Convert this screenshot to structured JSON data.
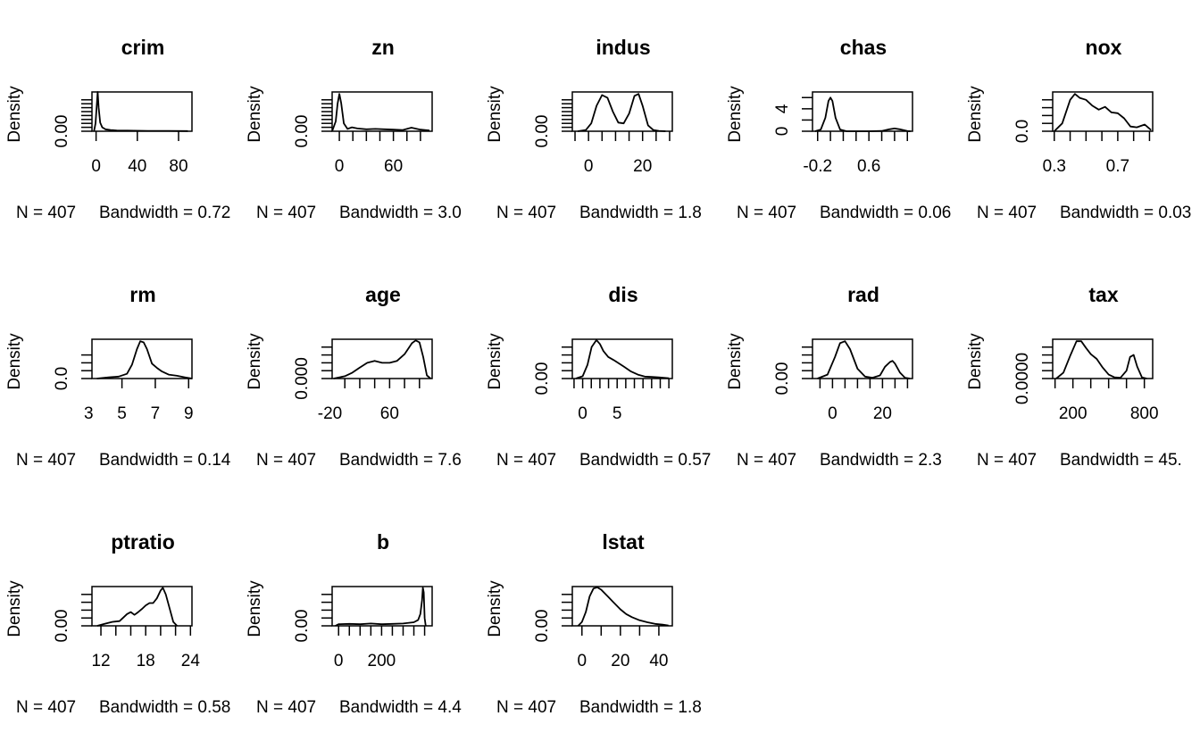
{
  "chart_data": [
    {
      "type": "line",
      "title": "crim",
      "ylabel": "Density",
      "xlim": [
        -4,
        93
      ],
      "ylim": [
        0,
        1
      ],
      "xticks": [
        0,
        40,
        80
      ],
      "xtick_labels": [
        "0",
        "40",
        "80"
      ],
      "yticks": [
        0,
        0.1,
        0.2,
        0.3,
        0.4,
        0.5,
        0.6,
        0.7,
        0.8
      ],
      "ytick_labels": [
        "0.00"
      ],
      "n_label": "N = 407",
      "bw_label": "Bandwidth = 0.72",
      "x": [
        -2,
        -0.5,
        0.5,
        1.5,
        2.5,
        4,
        6,
        9,
        14,
        20,
        30,
        50,
        70,
        89
      ],
      "y": [
        0,
        0.2,
        0.6,
        1,
        0.6,
        0.22,
        0.1,
        0.05,
        0.03,
        0.02,
        0.015,
        0.01,
        0.01,
        0.005
      ]
    },
    {
      "type": "line",
      "title": "zn",
      "ylabel": "Density",
      "xlim": [
        -8,
        103
      ],
      "ylim": [
        0,
        1
      ],
      "xticks": [
        0,
        60
      ],
      "xtick_labels": [
        "0",
        "60"
      ],
      "yticks": [
        0,
        0.1,
        0.2,
        0.3,
        0.4,
        0.5,
        0.6,
        0.7,
        0.8
      ],
      "ytick_labels": [
        "0.00"
      ],
      "n_label": "N = 407",
      "bw_label": "Bandwidth = 3.0",
      "x": [
        -9,
        -4,
        -2,
        0,
        2,
        5,
        9,
        14,
        20,
        30,
        40,
        50,
        60,
        70,
        75,
        80,
        90,
        100
      ],
      "y": [
        0,
        0.25,
        0.7,
        0.95,
        0.72,
        0.2,
        0.06,
        0.1,
        0.07,
        0.05,
        0.06,
        0.05,
        0.04,
        0.03,
        0.06,
        0.09,
        0.04,
        0.02
      ]
    },
    {
      "type": "line",
      "title": "indus",
      "ylabel": "Density",
      "xlim": [
        -6,
        31
      ],
      "ylim": [
        0,
        1
      ],
      "xticks": [
        0,
        20
      ],
      "xtick_labels": [
        "0",
        "20"
      ],
      "yticks": [
        0,
        0.1,
        0.2,
        0.3,
        0.4,
        0.5,
        0.6,
        0.7,
        0.8
      ],
      "ytick_labels": [
        "0.00"
      ],
      "n_label": "N = 407",
      "bw_label": "Bandwidth = 1.8",
      "x": [
        -4,
        -1,
        1,
        3,
        5,
        7,
        9,
        11,
        13,
        15,
        17,
        18.5,
        20,
        22,
        24,
        26,
        28.5
      ],
      "y": [
        0,
        0.03,
        0.2,
        0.65,
        0.92,
        0.85,
        0.5,
        0.22,
        0.2,
        0.45,
        0.9,
        0.95,
        0.65,
        0.15,
        0.03,
        0.01,
        0
      ]
    },
    {
      "type": "line",
      "title": "chas",
      "ylabel": "Density",
      "xlim": [
        -0.28,
        1.28
      ],
      "ylim": [
        0,
        7
      ],
      "xticks": [
        -0.2,
        0.6
      ],
      "xtick_labels": [
        "-0.2",
        "0.6"
      ],
      "yticks": [
        0,
        2,
        4,
        6
      ],
      "ytick_labels": [
        "0",
        "4"
      ],
      "n_label": "N = 407",
      "bw_label": "Bandwidth = 0.06",
      "x": [
        -0.24,
        -0.15,
        -0.08,
        -0.03,
        0,
        0.03,
        0.08,
        0.15,
        0.25,
        0.4,
        0.6,
        0.8,
        0.92,
        1.0,
        1.08,
        1.2,
        1.25
      ],
      "y": [
        0,
        0.3,
        2.4,
        5.4,
        6,
        5.4,
        2.4,
        0.3,
        0,
        0,
        0,
        0.05,
        0.35,
        0.5,
        0.35,
        0.03,
        0
      ]
    },
    {
      "type": "line",
      "title": "nox",
      "ylabel": "Density",
      "xlim": [
        0.29,
        0.92
      ],
      "ylim": [
        0,
        1
      ],
      "xticks": [
        0.3,
        0.7
      ],
      "xtick_labels": [
        "0.3",
        "0.7"
      ],
      "yticks": [
        0,
        0.2,
        0.4,
        0.6,
        0.8
      ],
      "ytick_labels": [
        "0.0"
      ],
      "n_label": "N = 407",
      "bw_label": "Bandwidth = 0.03",
      "x": [
        0.3,
        0.35,
        0.4,
        0.43,
        0.46,
        0.5,
        0.54,
        0.58,
        0.62,
        0.66,
        0.7,
        0.74,
        0.78,
        0.82,
        0.87,
        0.91
      ],
      "y": [
        0,
        0.2,
        0.8,
        0.95,
        0.85,
        0.8,
        0.65,
        0.55,
        0.62,
        0.48,
        0.46,
        0.33,
        0.12,
        0.1,
        0.17,
        0.03
      ]
    },
    {
      "type": "line",
      "title": "rm",
      "ylabel": "Density",
      "xlim": [
        3.2,
        9.2
      ],
      "ylim": [
        0,
        1
      ],
      "xticks": [
        3,
        5,
        7,
        9
      ],
      "xtick_labels": [
        "3",
        "5",
        "7",
        "9"
      ],
      "yticks": [
        0,
        0.2,
        0.4,
        0.6
      ],
      "ytick_labels": [
        "0.0"
      ],
      "n_label": "N = 407",
      "bw_label": "Bandwidth = 0.14",
      "x": [
        3.5,
        4.2,
        4.8,
        5.3,
        5.6,
        5.9,
        6.1,
        6.3,
        6.5,
        6.8,
        7.1,
        7.4,
        7.8,
        8.3,
        8.8,
        9.2
      ],
      "y": [
        0,
        0.03,
        0.05,
        0.12,
        0.35,
        0.75,
        0.95,
        0.92,
        0.75,
        0.38,
        0.27,
        0.18,
        0.1,
        0.07,
        0.03,
        0
      ]
    },
    {
      "type": "line",
      "title": "age",
      "ylabel": "Density",
      "xlim": [
        -17,
        117
      ],
      "ylim": [
        0,
        1
      ],
      "xticks": [
        -20,
        60
      ],
      "xtick_labels": [
        "-20",
        "60"
      ],
      "yticks": [
        0,
        0.2,
        0.4,
        0.6,
        0.8
      ],
      "ytick_labels": [
        "0.000"
      ],
      "n_label": "N = 407",
      "bw_label": "Bandwidth = 7.6",
      "x": [
        -15,
        0,
        10,
        20,
        30,
        40,
        50,
        60,
        70,
        80,
        90,
        95,
        100,
        105,
        110,
        115
      ],
      "y": [
        0,
        0.06,
        0.15,
        0.28,
        0.4,
        0.45,
        0.4,
        0.4,
        0.45,
        0.62,
        0.9,
        0.97,
        0.92,
        0.55,
        0.08,
        0
      ]
    },
    {
      "type": "line",
      "title": "dis",
      "ylabel": "Density",
      "xlim": [
        -1.5,
        13
      ],
      "ylim": [
        0,
        1
      ],
      "xticks": [
        0,
        5
      ],
      "xtick_labels": [
        "0",
        "5"
      ],
      "yticks": [
        0,
        0.2,
        0.4,
        0.6,
        0.8
      ],
      "ytick_labels": [
        "0.00"
      ],
      "n_label": "N = 407",
      "bw_label": "Bandwidth = 0.57",
      "x": [
        -1,
        0,
        0.7,
        1.3,
        2,
        2.5,
        3,
        3.7,
        4.5,
        5.3,
        6,
        7,
        8,
        9,
        10,
        11,
        12.5
      ],
      "y": [
        0,
        0.06,
        0.35,
        0.8,
        0.98,
        0.88,
        0.7,
        0.55,
        0.47,
        0.38,
        0.3,
        0.18,
        0.1,
        0.05,
        0.04,
        0.03,
        0.01
      ]
    },
    {
      "type": "line",
      "title": "rad",
      "ylabel": "Density",
      "xlim": [
        -8,
        32
      ],
      "ylim": [
        0,
        1
      ],
      "xticks": [
        0,
        20
      ],
      "xtick_labels": [
        "0",
        "20"
      ],
      "yticks": [
        0,
        0.2,
        0.4,
        0.6,
        0.8
      ],
      "ytick_labels": [
        "0.00"
      ],
      "n_label": "N = 407",
      "bw_label": "Bandwidth = 2.3",
      "x": [
        -6,
        -2,
        1,
        3,
        5,
        7,
        10,
        13,
        16,
        19,
        21,
        23,
        24,
        25,
        27,
        29,
        31
      ],
      "y": [
        0,
        0.1,
        0.55,
        0.9,
        0.95,
        0.75,
        0.25,
        0.05,
        0.02,
        0.08,
        0.3,
        0.42,
        0.45,
        0.38,
        0.15,
        0.02,
        0
      ]
    },
    {
      "type": "line",
      "title": "tax",
      "ylabel": "Density",
      "xlim": [
        30,
        870
      ],
      "ylim": [
        0,
        1
      ],
      "xticks": [
        200,
        800
      ],
      "xtick_labels": [
        "200",
        "800"
      ],
      "yticks": [
        0,
        0.2,
        0.4,
        0.6,
        0.8
      ],
      "ytick_labels": [
        "0.0000"
      ],
      "n_label": "N = 407",
      "bw_label": "Bandwidth = 45.",
      "x": [
        60,
        120,
        180,
        230,
        270,
        310,
        350,
        400,
        450,
        500,
        550,
        600,
        650,
        680,
        710,
        740,
        780,
        820
      ],
      "y": [
        0,
        0.15,
        0.6,
        0.95,
        0.95,
        0.78,
        0.62,
        0.5,
        0.28,
        0.1,
        0.03,
        0.02,
        0.2,
        0.55,
        0.6,
        0.3,
        0.03,
        0
      ]
    },
    {
      "type": "line",
      "title": "ptratio",
      "ylabel": "Density",
      "xlim": [
        10.8,
        24.2
      ],
      "ylim": [
        0,
        1
      ],
      "xticks": [
        12,
        14,
        16,
        18,
        20,
        22,
        24
      ],
      "xtick_labels": [
        "12",
        "18",
        "24"
      ],
      "yticks": [
        0,
        0.2,
        0.4,
        0.6,
        0.8
      ],
      "ytick_labels": [
        "0.00"
      ],
      "n_label": "N = 407",
      "bw_label": "Bandwidth = 0.58",
      "x": [
        11.5,
        12.5,
        13.5,
        14.5,
        15.5,
        16,
        16.5,
        17,
        17.5,
        18,
        18.5,
        19,
        19.5,
        20,
        20.3,
        20.7,
        21.2,
        21.7,
        22.2
      ],
      "y": [
        0,
        0.05,
        0.1,
        0.12,
        0.3,
        0.35,
        0.28,
        0.35,
        0.43,
        0.52,
        0.58,
        0.58,
        0.7,
        0.9,
        0.97,
        0.8,
        0.45,
        0.1,
        0
      ]
    },
    {
      "type": "line",
      "title": "b",
      "ylabel": "Density",
      "xlim": [
        -30,
        435
      ],
      "ylim": [
        0,
        1
      ],
      "xticks": [
        0,
        200
      ],
      "xtick_labels": [
        "0",
        "200"
      ],
      "yticks": [
        0,
        0.2,
        0.4,
        0.6,
        0.8
      ],
      "ytick_labels": [
        "0.00"
      ],
      "n_label": "N = 407",
      "bw_label": "Bandwidth = 4.4",
      "x": [
        -15,
        0,
        50,
        100,
        150,
        200,
        250,
        300,
        350,
        370,
        380,
        388,
        392,
        396,
        400,
        405
      ],
      "y": [
        0,
        0.04,
        0.05,
        0.04,
        0.06,
        0.04,
        0.05,
        0.06,
        0.09,
        0.15,
        0.3,
        0.65,
        0.97,
        0.85,
        0.2,
        0
      ]
    },
    {
      "type": "line",
      "title": "lstat",
      "ylabel": "Density",
      "xlim": [
        -5,
        47
      ],
      "ylim": [
        0,
        1
      ],
      "xticks": [
        0,
        10,
        20,
        30,
        40
      ],
      "xtick_labels": [
        "0",
        "20",
        "40"
      ],
      "yticks": [
        0,
        0.2,
        0.4,
        0.6,
        0.8
      ],
      "ytick_labels": [
        "0.00"
      ],
      "n_label": "N = 407",
      "bw_label": "Bandwidth = 1.8",
      "x": [
        -2,
        0,
        2,
        4,
        6,
        8,
        10,
        12,
        14,
        16,
        18,
        20,
        23,
        26,
        30,
        34,
        38,
        42,
        45
      ],
      "y": [
        0,
        0.1,
        0.35,
        0.75,
        0.95,
        0.98,
        0.92,
        0.82,
        0.72,
        0.62,
        0.52,
        0.42,
        0.3,
        0.22,
        0.14,
        0.09,
        0.05,
        0.03,
        0.01
      ]
    }
  ]
}
